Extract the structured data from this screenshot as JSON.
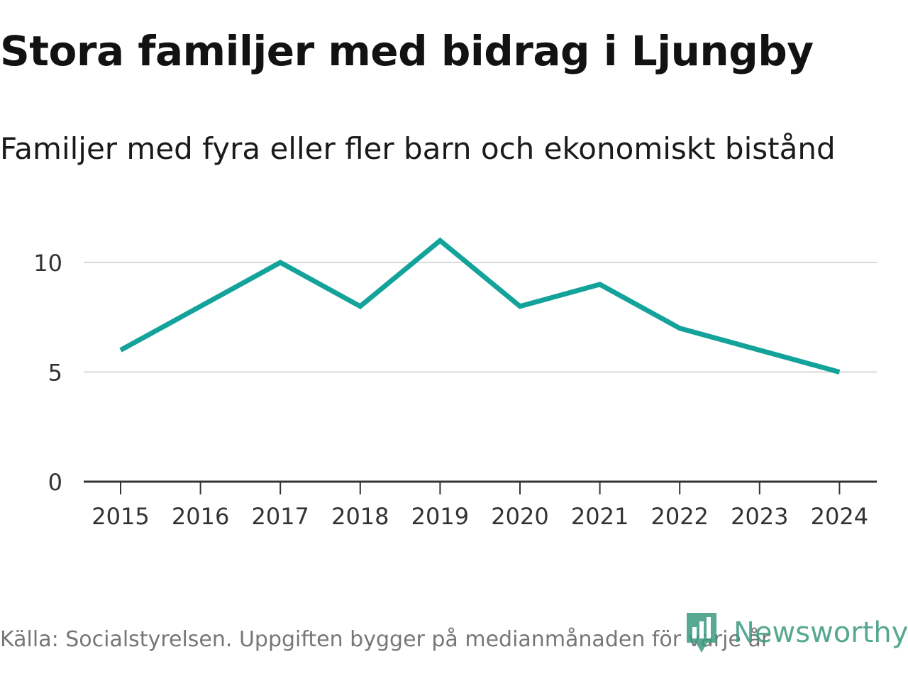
{
  "colors": {
    "line": "#13a39a",
    "grid": "#d9d9d9",
    "axis": "#333333",
    "tick_text": "#333333",
    "brand": "#3a9a7e"
  },
  "chart_data": {
    "type": "line",
    "title": "Stora familjer med bidrag i Ljungby",
    "subtitle": "Familjer med fyra eller fler barn och ekonomiskt bistånd",
    "xlabel": "",
    "ylabel": "",
    "categories": [
      "2015",
      "2016",
      "2017",
      "2018",
      "2019",
      "2020",
      "2021",
      "2022",
      "2023",
      "2024"
    ],
    "series": [
      {
        "name": "Familjer med fyra eller fler barn och ekonomiskt bistånd",
        "values": [
          6,
          8,
          10,
          8,
          11,
          8,
          9,
          7,
          6,
          5
        ]
      }
    ],
    "ylim": [
      0,
      12
    ],
    "yticks": [
      0,
      5,
      10
    ],
    "ytick_labels": [
      "0",
      "5",
      "10"
    ],
    "grid": true,
    "legend": "none"
  },
  "footer": {
    "source": "Källa: Socialstyrelsen. Uppgiften bygger på medianmånaden för varje år",
    "brand": "Newsworthy",
    "brand_icon": "newsworthy-logo-icon"
  }
}
